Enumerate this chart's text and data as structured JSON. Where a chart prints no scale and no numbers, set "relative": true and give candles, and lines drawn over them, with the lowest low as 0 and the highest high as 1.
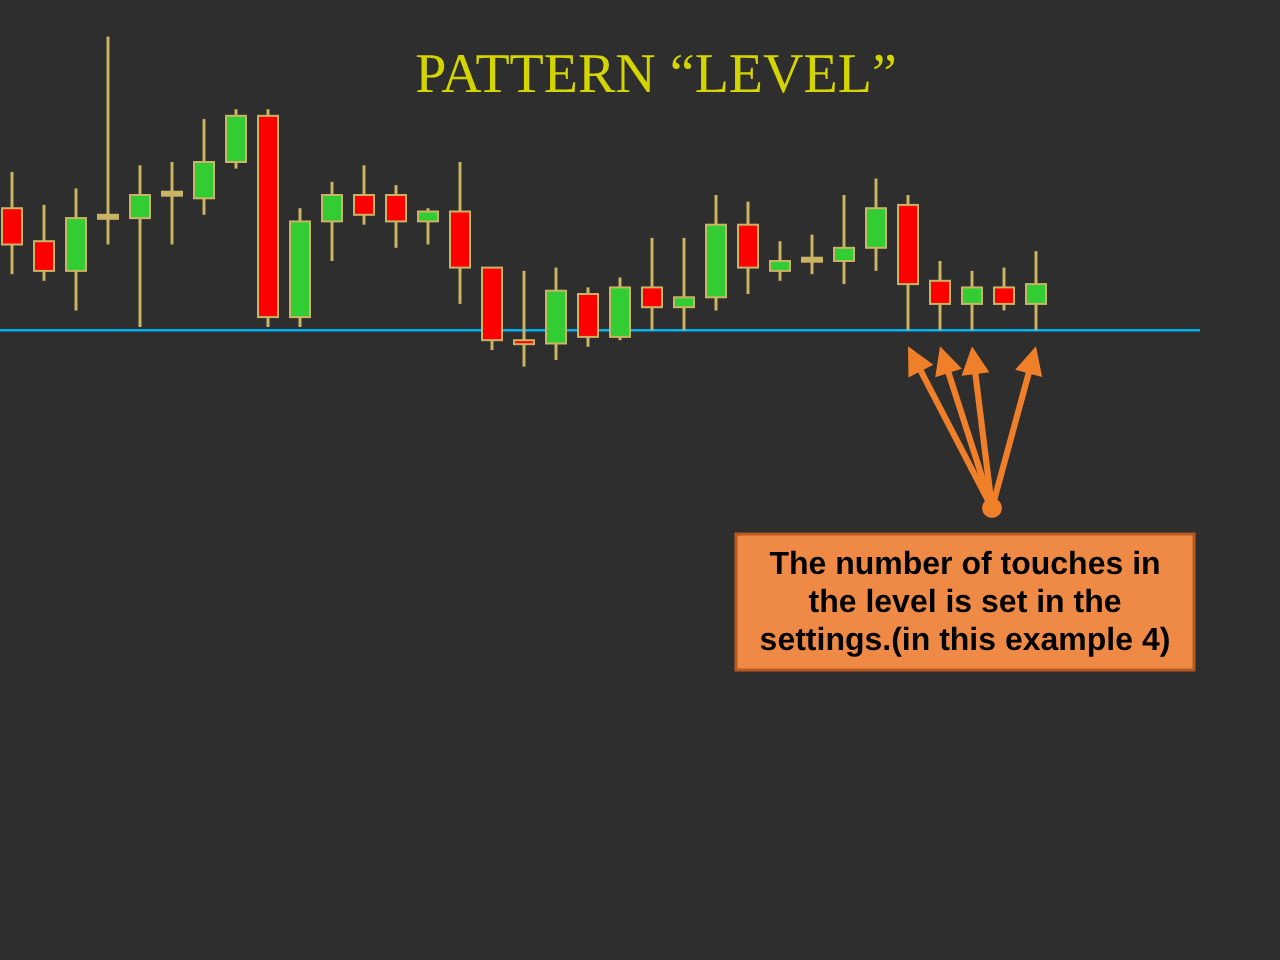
{
  "chart_data": {
    "type": "candlestick",
    "title": "PATTERN “LEVEL”",
    "relative": true,
    "categories": [
      null,
      null,
      null,
      null,
      null,
      null,
      null,
      null,
      null,
      null,
      null,
      null,
      null,
      null,
      null,
      null,
      null,
      null,
      null,
      null,
      null,
      null,
      null,
      null,
      null,
      null,
      null,
      null,
      null,
      null,
      null,
      null,
      null
    ],
    "ohlc": [
      [
        0.48,
        0.59,
        0.28,
        0.37
      ],
      [
        0.38,
        0.49,
        0.26,
        0.29
      ],
      [
        0.29,
        0.54,
        0.17,
        0.45
      ],
      [
        0.46,
        1,
        0.37,
        0.45
      ],
      [
        0.45,
        0.61,
        0.12,
        0.52
      ],
      [
        0.53,
        0.62,
        0.37,
        0.52
      ],
      [
        0.51,
        0.75,
        0.46,
        0.62
      ],
      [
        0.62,
        0.78,
        0.6,
        0.76
      ],
      [
        0.76,
        0.78,
        0.12,
        0.15
      ],
      [
        0.15,
        0.48,
        0.12,
        0.44
      ],
      [
        0.44,
        0.56,
        0.32,
        0.52
      ],
      [
        0.52,
        0.61,
        0.43,
        0.46
      ],
      [
        0.52,
        0.55,
        0.36,
        0.44
      ],
      [
        0.44,
        0.48,
        0.37,
        0.47
      ],
      [
        0.47,
        0.62,
        0.19,
        0.3
      ],
      [
        0.3,
        0.3,
        0.05,
        0.08
      ],
      [
        0.08,
        0.29,
        0,
        0.07
      ],
      [
        0.07,
        0.3,
        0.02,
        0.23
      ],
      [
        0.22,
        0.24,
        0.06,
        0.09
      ],
      [
        0.09,
        0.27,
        0.08,
        0.24
      ],
      [
        0.24,
        0.39,
        0.11,
        0.18
      ],
      [
        0.18,
        0.39,
        0.11,
        0.21
      ],
      [
        0.21,
        0.52,
        0.17,
        0.43
      ],
      [
        0.43,
        0.5,
        0.22,
        0.3
      ],
      [
        0.29,
        0.38,
        0.26,
        0.32
      ],
      [
        0.33,
        0.4,
        0.28,
        0.32
      ],
      [
        0.32,
        0.52,
        0.25,
        0.36
      ],
      [
        0.36,
        0.57,
        0.29,
        0.48
      ],
      [
        0.49,
        0.52,
        0.11,
        0.25
      ],
      [
        0.26,
        0.32,
        0.11,
        0.19
      ],
      [
        0.19,
        0.29,
        0.11,
        0.24
      ],
      [
        0.24,
        0.3,
        0.17,
        0.19
      ],
      [
        0.19,
        0.35,
        0.11,
        0.25
      ]
    ],
    "colors": [
      "#ff0000",
      "#ff0000",
      "#32cd32",
      "#c8b464",
      "#32cd32",
      "#c8b464",
      "#32cd32",
      "#32cd32",
      "#ff0000",
      "#32cd32",
      "#32cd32",
      "#ff0000",
      "#ff0000",
      "#32cd32",
      "#ff0000",
      "#ff0000",
      "#ff0000",
      "#32cd32",
      "#ff0000",
      "#32cd32",
      "#ff0000",
      "#32cd32",
      "#32cd32",
      "#ff0000",
      "#32cd32",
      "#c8b464",
      "#32cd32",
      "#32cd32",
      "#ff0000",
      "#ff0000",
      "#32cd32",
      "#ff0000",
      "#32cd32"
    ],
    "ref_lines": [
      {
        "axis": "y",
        "value": 0.11,
        "color": "#00b0f0"
      }
    ],
    "annotations": [
      "The number of touches in the level is set in the settings.(in this example 4)"
    ]
  }
}
